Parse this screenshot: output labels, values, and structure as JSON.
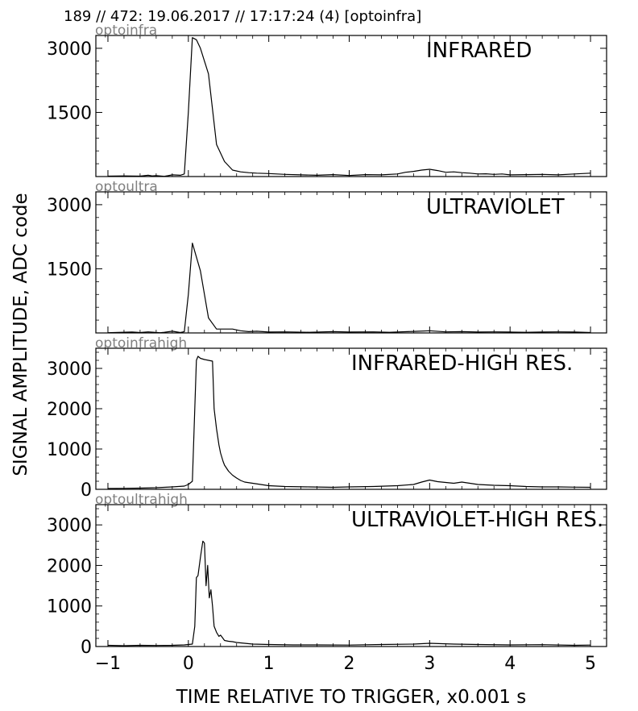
{
  "header": "189 // 472:   19.06.2017 // 17:17:24 (4)  [optoinfra]",
  "ylabel": "SIGNAL AMPLITUDE,  ADC code",
  "xlabel": "TIME RELATIVE TO TRIGGER,   x0.001 s",
  "x_ticks": [
    "−1",
    "0",
    "1",
    "2",
    "3",
    "4",
    "5"
  ],
  "chart_data": [
    {
      "type": "line",
      "channel": "optoinfra",
      "title": "INFRARED",
      "xlim": [
        -1.15,
        5.2
      ],
      "ylim": [
        0,
        3300
      ],
      "y_ticks": [
        1500,
        3000
      ],
      "y_tick_labels": [
        "1500",
        "3000"
      ],
      "x": [
        -1.0,
        -0.8,
        -0.6,
        -0.5,
        -0.45,
        -0.4,
        -0.3,
        -0.25,
        -0.2,
        -0.1,
        -0.05,
        0.0,
        0.05,
        0.1,
        0.15,
        0.25,
        0.35,
        0.45,
        0.55,
        0.65,
        0.75,
        0.85,
        1.0,
        1.2,
        1.4,
        1.6,
        1.8,
        2.0,
        2.2,
        2.4,
        2.6,
        2.7,
        2.8,
        2.9,
        3.0,
        3.1,
        3.2,
        3.3,
        3.4,
        3.5,
        3.6,
        3.7,
        3.8,
        3.9,
        4.0,
        4.2,
        4.4,
        4.6,
        4.8,
        5.0
      ],
      "y": [
        10,
        15,
        10,
        30,
        15,
        20,
        5,
        20,
        40,
        30,
        60,
        1500,
        3250,
        3200,
        3000,
        2400,
        750,
        350,
        150,
        110,
        90,
        80,
        70,
        50,
        40,
        30,
        45,
        25,
        45,
        40,
        60,
        100,
        120,
        150,
        170,
        140,
        100,
        110,
        90,
        80,
        60,
        65,
        50,
        60,
        40,
        45,
        50,
        40,
        60,
        80
      ]
    },
    {
      "type": "line",
      "channel": "optoultra",
      "title": "ULTRAVIOLET",
      "xlim": [
        -1.15,
        5.2
      ],
      "ylim": [
        0,
        3300
      ],
      "y_ticks": [
        1500,
        3000
      ],
      "y_tick_labels": [
        "1500",
        "3000"
      ],
      "x": [
        -1.0,
        -0.7,
        -0.6,
        -0.5,
        -0.35,
        -0.3,
        -0.2,
        -0.1,
        -0.05,
        0.0,
        0.05,
        0.15,
        0.25,
        0.35,
        0.45,
        0.55,
        0.65,
        0.75,
        0.85,
        1.0,
        1.2,
        1.5,
        1.8,
        2.0,
        2.3,
        2.5,
        2.8,
        3.0,
        3.2,
        3.4,
        3.6,
        3.8,
        4.0,
        4.2,
        4.4,
        4.6,
        4.8,
        5.0
      ],
      "y": [
        5,
        20,
        10,
        25,
        5,
        15,
        40,
        10,
        30,
        900,
        2100,
        1450,
        350,
        90,
        90,
        90,
        50,
        30,
        40,
        20,
        25,
        15,
        30,
        20,
        25,
        15,
        35,
        50,
        25,
        30,
        20,
        25,
        20,
        15,
        20,
        25,
        20,
        10
      ]
    },
    {
      "type": "line",
      "channel": "optoinfrahigh",
      "title": "INFRARED-HIGH RES.",
      "xlim": [
        -1.15,
        5.2
      ],
      "ylim": [
        0,
        3500
      ],
      "y_ticks": [
        0,
        1000,
        2000,
        3000
      ],
      "y_tick_labels": [
        "0",
        "1000",
        "2000",
        "3000"
      ],
      "x": [
        -1.0,
        -0.8,
        -0.6,
        -0.4,
        -0.2,
        -0.05,
        0.0,
        0.05,
        0.1,
        0.12,
        0.15,
        0.2,
        0.25,
        0.3,
        0.32,
        0.35,
        0.38,
        0.4,
        0.43,
        0.45,
        0.5,
        0.55,
        0.6,
        0.65,
        0.7,
        0.8,
        0.9,
        1.0,
        1.2,
        1.5,
        1.8,
        2.0,
        2.3,
        2.6,
        2.8,
        2.9,
        3.0,
        3.1,
        3.2,
        3.3,
        3.4,
        3.5,
        3.6,
        3.8,
        4.0,
        4.2,
        4.4,
        4.6,
        4.8,
        5.0
      ],
      "y": [
        20,
        25,
        30,
        40,
        60,
        80,
        120,
        200,
        3200,
        3300,
        3250,
        3220,
        3200,
        3180,
        2000,
        1500,
        1100,
        900,
        700,
        600,
        450,
        350,
        280,
        220,
        180,
        150,
        120,
        90,
        70,
        60,
        50,
        60,
        70,
        90,
        120,
        180,
        230,
        190,
        170,
        150,
        180,
        150,
        120,
        100,
        90,
        70,
        60,
        60,
        55,
        50
      ]
    },
    {
      "type": "line",
      "channel": "optoultrahigh",
      "title": "ULTRAVIOLET-HIGH RES.",
      "xlim": [
        -1.15,
        5.2
      ],
      "ylim": [
        0,
        3500
      ],
      "y_ticks": [
        0,
        1000,
        2000,
        3000
      ],
      "y_tick_labels": [
        "0",
        "1000",
        "2000",
        "3000"
      ],
      "x": [
        -1.0,
        -0.8,
        -0.6,
        -0.4,
        -0.2,
        -0.05,
        0.05,
        0.08,
        0.1,
        0.12,
        0.15,
        0.18,
        0.2,
        0.22,
        0.24,
        0.26,
        0.28,
        0.3,
        0.32,
        0.35,
        0.38,
        0.4,
        0.43,
        0.45,
        0.5,
        0.55,
        0.6,
        0.7,
        0.8,
        1.0,
        1.3,
        1.6,
        2.0,
        2.4,
        2.8,
        3.0,
        3.3,
        3.6,
        4.0,
        4.4,
        4.8,
        5.0
      ],
      "y": [
        30,
        20,
        30,
        25,
        30,
        40,
        60,
        500,
        1700,
        1750,
        2200,
        2600,
        2550,
        1500,
        2000,
        1200,
        1400,
        1000,
        500,
        350,
        250,
        280,
        200,
        150,
        130,
        120,
        100,
        80,
        60,
        50,
        40,
        40,
        35,
        50,
        60,
        80,
        60,
        50,
        40,
        45,
        30,
        35
      ]
    }
  ]
}
